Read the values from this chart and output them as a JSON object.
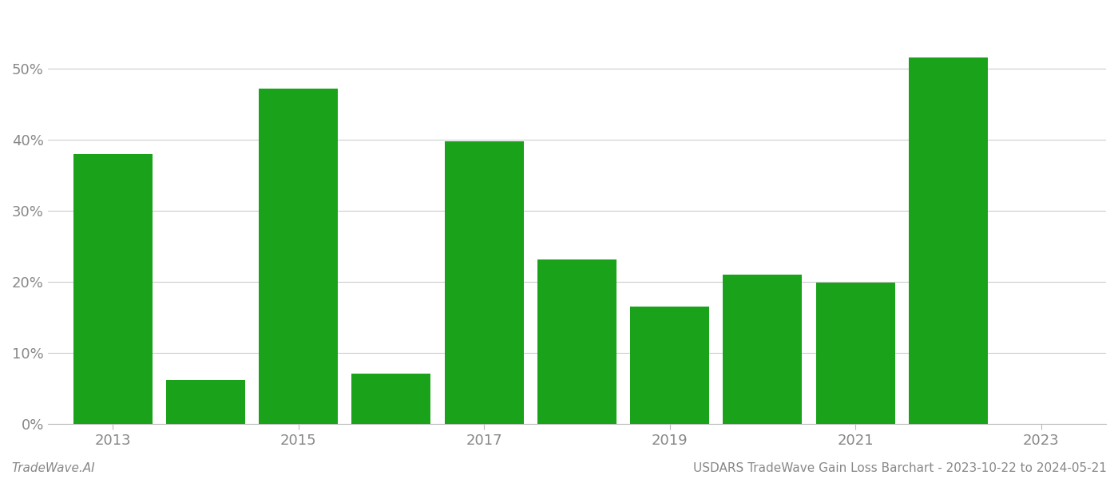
{
  "years": [
    2013,
    2014,
    2015,
    2016,
    2017,
    2018,
    2019,
    2020,
    2021,
    2022
  ],
  "values": [
    0.38,
    0.062,
    0.472,
    0.071,
    0.398,
    0.232,
    0.165,
    0.21,
    0.199,
    0.516
  ],
  "bar_color": "#1aa31a",
  "background_color": "#ffffff",
  "grid_color": "#cccccc",
  "tick_label_color": "#888888",
  "bottom_left_text": "TradeWave.AI",
  "bottom_right_text": "USDARS TradeWave Gain Loss Barchart - 2023-10-22 to 2024-05-21",
  "ylim": [
    0,
    0.58
  ],
  "yticks": [
    0.0,
    0.1,
    0.2,
    0.3,
    0.4,
    0.5
  ],
  "xticks": [
    2013,
    2015,
    2017,
    2019,
    2021,
    2023
  ],
  "xlim": [
    2012.3,
    2023.7
  ],
  "bar_width": 0.85,
  "figsize": [
    14.0,
    6.0
  ],
  "dpi": 100,
  "tick_fontsize": 13,
  "footer_fontsize": 11
}
